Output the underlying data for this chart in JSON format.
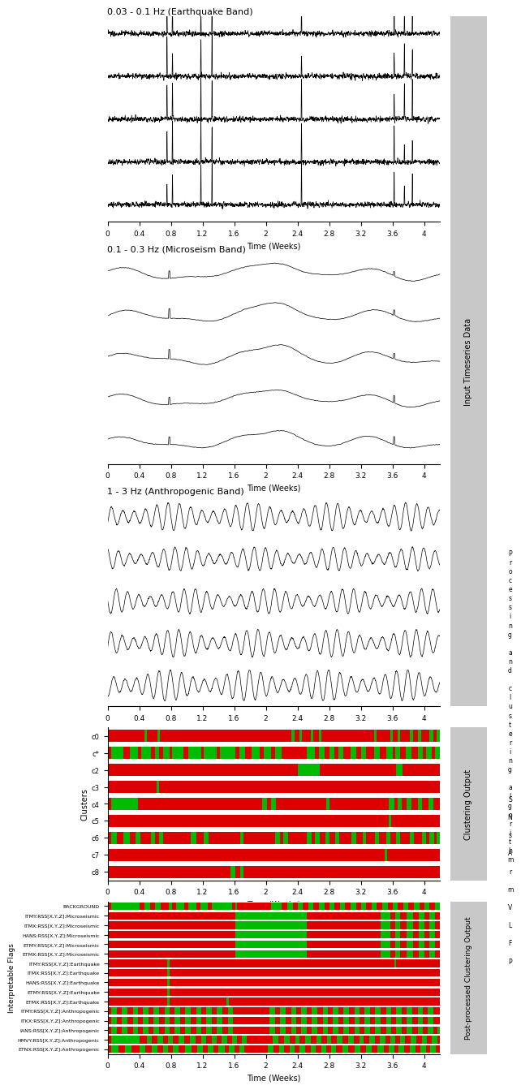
{
  "panel1_title": "0.03 - 0.1 Hz (Earthquake Band)",
  "panel2_title": "0.1 - 0.3 Hz (Microseism Band)",
  "panel3_title": "1 - 3 Hz (Anthropogenic Band)",
  "xlabel": "Time (Weeks)",
  "n_timeseries": 5,
  "t_max": 4.2,
  "xticks": [
    0,
    0.4,
    0.8,
    1.2,
    1.6,
    2,
    2.4,
    2.8,
    3.2,
    3.6,
    4
  ],
  "xticklabels": [
    "0",
    "0.4",
    "0.8",
    "1.2",
    "1.6",
    "2",
    "2.4",
    "2.8",
    "3.2",
    "3.6",
    "4"
  ],
  "side_label_ts": "Input Timeseries Data",
  "side_label_cluster": "Clustering Output",
  "side_label_post": "Post-processed Clustering Output",
  "side_text_middle": "P\nr\no\nc\ne\ns\ns\ni\nn\ng\n\na\nn\nd\n\nc\nl\nu\ns\nt\ne\nr\ni\nn\ng\n\na\nl\ng\no\nr\ni\nt\nh\nm",
  "side_text_below": "S\n\nN\n\ns\n\nA\n\nr\n\nm\n\nV\n\nL\n\nF\n\nP",
  "cluster_labels": [
    "c8",
    "c7",
    "c6",
    "c5",
    "c4",
    "c3",
    "c2",
    "c*",
    "c0"
  ],
  "interp_labels": [
    "ETNX:RSS[X,Y,Z]:Anthropogenic",
    "HMVY:RSS[X,Y,Z]:Anthropogenic",
    "IANS:RSS[X,Y,Z]:Anthropogenic",
    "ITKX:RSS[X,Y,Z]:Anthropogenic",
    "ITMY:RSS[X,Y,Z]:Anthropogenic",
    "ETMX:RSS[X,Y,Z]:Earthquake",
    "ETMY:RSS[X,Y,Z]:Earthquake",
    "HANS:RSS[X,Y,Z]:Earthquake",
    "ITMX:RSS[X,Y,Z]:Earthquake",
    "ITMY:RSS[X,Y,Z]:Earthquake",
    "ETMX:RSS[X,Y,Z]:Microseismic",
    "ETMY:RSS[X,Y,Z]:Microseismic",
    "HANS:RSS[X,Y,Z]:Microseismic",
    "ITMX:RSS[X,Y,Z]:Microseismic",
    "ITMY:RSS[X,Y,Z]:Microseismic",
    "BACKGROUND"
  ],
  "green": "#00bb00",
  "red": "#dd0000",
  "bg_color": "#ffffff",
  "line_color": "#000000",
  "side_gray": "#c8c8c8"
}
